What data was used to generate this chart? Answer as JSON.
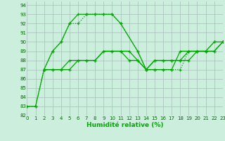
{
  "background_color": "#cceedd",
  "grid_color": "#aabbbb",
  "line_color": "#00aa00",
  "xlabel": "Humidité relative (%)",
  "xlim": [
    0,
    23
  ],
  "ylim": [
    82,
    94.4
  ],
  "yticks": [
    82,
    83,
    84,
    85,
    86,
    87,
    88,
    89,
    90,
    91,
    92,
    93,
    94
  ],
  "xticks": [
    0,
    1,
    2,
    3,
    4,
    5,
    6,
    7,
    8,
    9,
    10,
    11,
    12,
    13,
    14,
    15,
    16,
    17,
    18,
    19,
    20,
    21,
    22,
    23
  ],
  "series": [
    {
      "x": [
        0,
        1,
        2,
        3,
        4,
        5,
        6,
        7,
        8,
        9,
        10,
        11,
        13,
        14,
        15,
        16,
        17,
        18,
        19,
        20,
        21,
        22,
        23
      ],
      "y": [
        83,
        83,
        87,
        89,
        90,
        92,
        92,
        93,
        93,
        93,
        93,
        92,
        89,
        87,
        87,
        87,
        87,
        87,
        89,
        89,
        89,
        90,
        90
      ],
      "ls": "dotted"
    },
    {
      "x": [
        0,
        1,
        2,
        3,
        4,
        5,
        6,
        7,
        8,
        9,
        10,
        11,
        13,
        14,
        15,
        16,
        17,
        18,
        19,
        20,
        21,
        22,
        23
      ],
      "y": [
        83,
        83,
        87,
        89,
        90,
        92,
        93,
        93,
        93,
        93,
        93,
        92,
        89,
        87,
        87,
        87,
        87,
        89,
        89,
        89,
        89,
        90,
        90
      ],
      "ls": "-"
    },
    {
      "x": [
        2,
        3,
        4,
        5,
        6,
        7,
        8,
        9,
        10,
        11,
        12,
        13,
        14,
        15,
        16,
        17,
        18,
        19,
        20,
        21,
        22,
        23
      ],
      "y": [
        87,
        87,
        87,
        87,
        88,
        88,
        88,
        89,
        89,
        89,
        88,
        88,
        87,
        88,
        88,
        88,
        88,
        88,
        89,
        89,
        89,
        90
      ],
      "ls": "-"
    },
    {
      "x": [
        2,
        3,
        4,
        5,
        6,
        7,
        8,
        9,
        10,
        11,
        12,
        13,
        14,
        15,
        16,
        17,
        18,
        19,
        20,
        21,
        22,
        23
      ],
      "y": [
        87,
        87,
        87,
        88,
        88,
        88,
        88,
        89,
        89,
        89,
        89,
        88,
        87,
        88,
        88,
        88,
        88,
        89,
        89,
        89,
        89,
        90
      ],
      "ls": "-"
    }
  ]
}
